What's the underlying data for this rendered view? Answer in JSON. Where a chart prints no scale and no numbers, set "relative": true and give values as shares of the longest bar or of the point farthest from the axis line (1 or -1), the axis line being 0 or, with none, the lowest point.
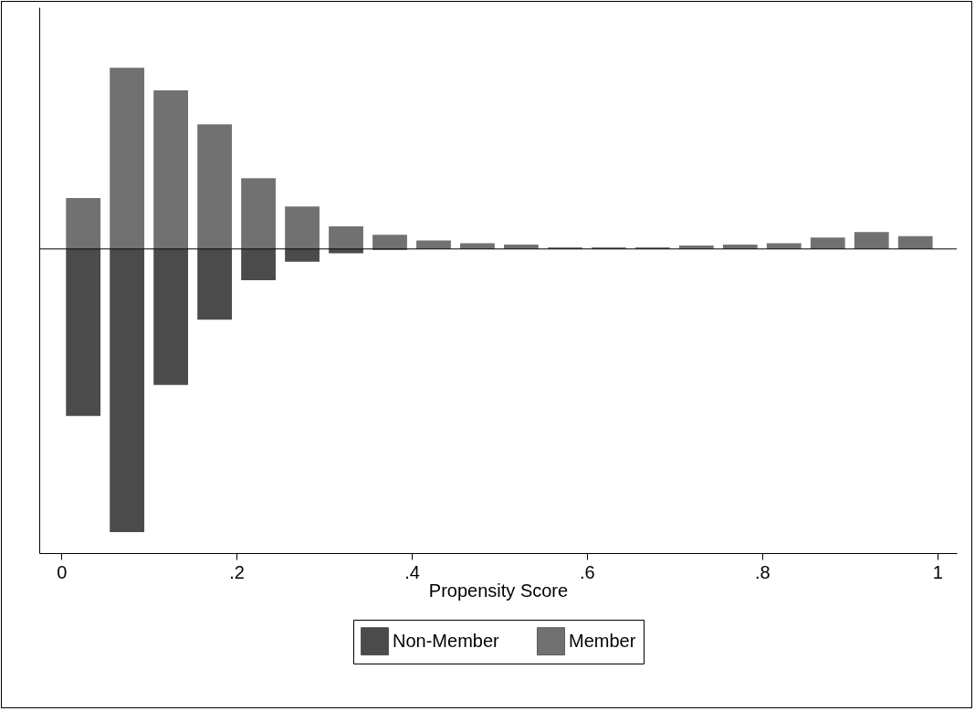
{
  "chart_data": {
    "type": "bar",
    "relative": true,
    "xlabel": "Propensity Score",
    "x": [
      0.025,
      0.075,
      0.125,
      0.175,
      0.225,
      0.275,
      0.325,
      0.375,
      0.425,
      0.475,
      0.525,
      0.575,
      0.625,
      0.675,
      0.725,
      0.775,
      0.825,
      0.875,
      0.925,
      0.975
    ],
    "xlim": [
      -0.02,
      1.017
    ],
    "xticks": [
      0,
      {
        "value": 0.2,
        "label": ".2"
      },
      {
        "value": 0.4,
        "label": ".4"
      },
      {
        "value": 0.6,
        "label": ".6"
      },
      {
        "value": 0.8,
        "label": ".8"
      },
      1
    ],
    "series": [
      {
        "name": "Non-Member",
        "color": "#4b4b4b",
        "values": [
          -0.59,
          -1,
          -0.48,
          -0.25,
          -0.11,
          -0.045,
          -0.015,
          -0.003,
          0,
          0,
          0,
          0,
          0,
          0,
          0,
          0,
          0,
          0,
          0,
          0
        ]
      },
      {
        "name": "Member",
        "color": "#717171",
        "values": [
          0.18,
          0.64,
          0.56,
          0.44,
          0.25,
          0.15,
          0.08,
          0.05,
          0.03,
          0.02,
          0.015,
          0.006,
          0.006,
          0.006,
          0.012,
          0.015,
          0.02,
          0.04,
          0.06,
          0.045
        ]
      }
    ],
    "grid": false,
    "legend": "bottom"
  }
}
